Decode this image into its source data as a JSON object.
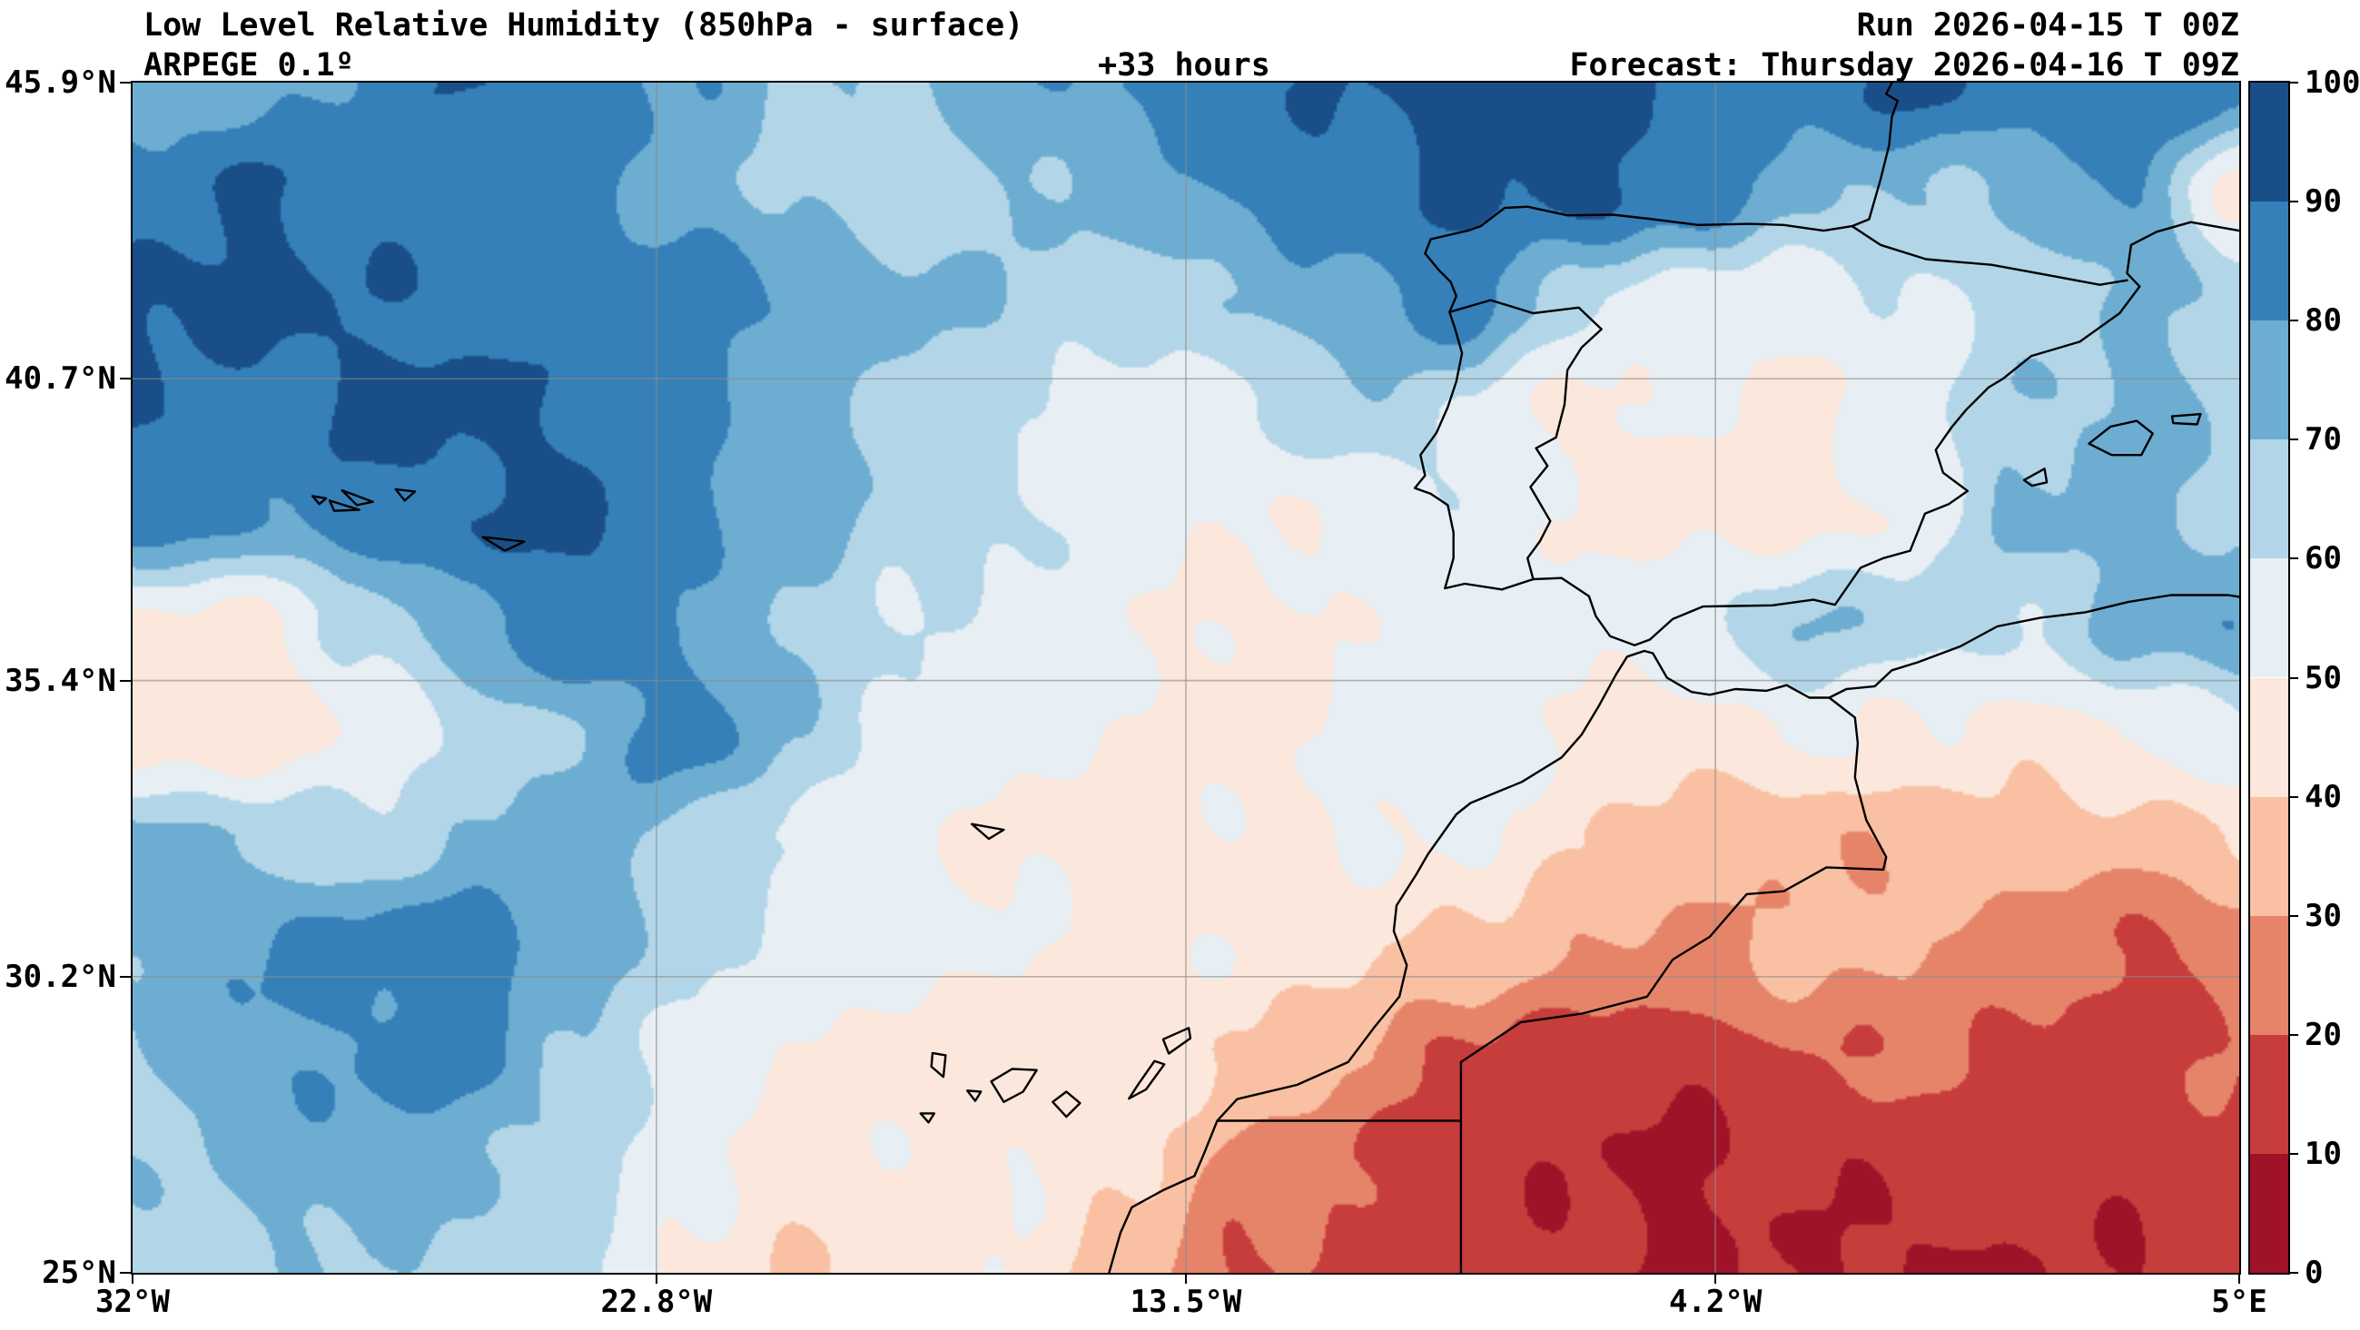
{
  "header": {
    "title": "Low Level Relative Humidity (850hPa - surface)",
    "model": "ARPEGE 0.1º",
    "lead_time": "+33 hours",
    "run": "Run 2026-04-15 T 00Z",
    "forecast": "Forecast: Thursday 2026-04-16 T 09Z"
  },
  "axes": {
    "x": {
      "ticks": [
        {
          "value": -32,
          "label": "32°W"
        },
        {
          "value": -22.8,
          "label": "22.8°W"
        },
        {
          "value": -13.5,
          "label": "13.5°W"
        },
        {
          "value": -4.2,
          "label": "4.2°W"
        },
        {
          "value": 5,
          "label": "5°E"
        }
      ]
    },
    "y": {
      "ticks": [
        {
          "value": 45.9,
          "label": "45.9°N"
        },
        {
          "value": 40.7,
          "label": "40.7°N"
        },
        {
          "value": 35.4,
          "label": "35.4°N"
        },
        {
          "value": 30.2,
          "label": "30.2°N"
        },
        {
          "value": 25,
          "label": "25°N"
        }
      ]
    }
  },
  "colorbar": {
    "min": 0,
    "max": 100,
    "ticks": [
      0,
      10,
      20,
      30,
      40,
      50,
      60,
      70,
      80,
      90,
      100
    ],
    "colors": [
      "#9f1228",
      "#c63d3c",
      "#e6846a",
      "#f9c0a3",
      "#fbe7db",
      "#e7eff4",
      "#b2d6e8",
      "#6dadd1",
      "#3580b9",
      "#1a4e88"
    ]
  },
  "chart_data": {
    "type": "heatmap",
    "title": "Low Level Relative Humidity (850hPa - surface)",
    "variable": "relative humidity (%)",
    "levels": [
      0,
      10,
      20,
      30,
      40,
      50,
      60,
      70,
      80,
      90,
      100
    ],
    "legend_position": "right-colorbar",
    "grid_on": true,
    "extent": {
      "lon_min": -32,
      "lon_max": 5,
      "lat_min": 25,
      "lat_max": 45.9
    },
    "gridlines": {
      "x": [
        -22.8,
        -13.5,
        -4.2
      ],
      "y": [
        40.7,
        35.4,
        30.2
      ]
    },
    "grid": {
      "lats": [
        45.9,
        44.0,
        42.1,
        40.2,
        38.3,
        36.4,
        34.5,
        32.6,
        30.7,
        28.8,
        26.9,
        25.0
      ],
      "lons": [
        -32,
        -30.1,
        -28.1,
        -26.2,
        -24.2,
        -22.3,
        -20.3,
        -18.4,
        -16.4,
        -14.5,
        -12.5,
        -10.5,
        -8.6,
        -6.6,
        -4.7,
        -2.8,
        -0.8,
        1.2,
        3.1,
        5
      ],
      "values": [
        [
          75,
          75,
          80,
          90,
          90,
          80,
          70,
          70,
          75,
          80,
          85,
          90,
          95,
          95,
          90,
          85,
          90,
          85,
          90,
          85
        ],
        [
          85,
          90,
          85,
          80,
          85,
          75,
          70,
          65,
          70,
          75,
          80,
          85,
          90,
          95,
          90,
          75,
          70,
          70,
          80,
          45
        ],
        [
          95,
          95,
          90,
          85,
          80,
          85,
          80,
          75,
          70,
          65,
          70,
          75,
          85,
          60,
          55,
          55,
          60,
          65,
          70,
          65
        ],
        [
          90,
          85,
          95,
          95,
          90,
          80,
          70,
          65,
          60,
          55,
          60,
          70,
          60,
          45,
          50,
          45,
          55,
          70,
          75,
          70
        ],
        [
          85,
          78,
          85,
          90,
          95,
          85,
          75,
          65,
          60,
          55,
          50,
          55,
          60,
          50,
          45,
          45,
          50,
          70,
          75,
          70
        ],
        [
          50,
          45,
          60,
          75,
          90,
          80,
          70,
          60,
          55,
          50,
          45,
          50,
          55,
          55,
          60,
          70,
          65,
          60,
          70,
          80
        ],
        [
          45,
          45,
          50,
          60,
          70,
          85,
          70,
          60,
          55,
          50,
          45,
          50,
          55,
          50,
          45,
          55,
          50,
          45,
          50,
          55
        ],
        [
          75,
          70,
          65,
          70,
          75,
          65,
          55,
          50,
          50,
          45,
          50,
          50,
          50,
          40,
          35,
          30,
          35,
          40,
          35,
          40
        ],
        [
          70,
          80,
          85,
          90,
          75,
          65,
          55,
          50,
          50,
          45,
          50,
          45,
          40,
          30,
          25,
          30,
          30,
          25,
          20,
          25
        ],
        [
          65,
          75,
          80,
          85,
          70,
          60,
          50,
          45,
          42,
          45,
          40,
          30,
          20,
          18,
          15,
          20,
          20,
          15,
          15,
          20
        ],
        [
          70,
          70,
          75,
          70,
          65,
          55,
          45,
          50,
          50,
          40,
          25,
          18,
          15,
          12,
          10,
          15,
          12,
          15,
          12,
          15
        ],
        [
          65,
          70,
          70,
          65,
          60,
          45,
          40,
          45,
          50,
          35,
          20,
          15,
          12,
          10,
          8,
          12,
          10,
          12,
          10,
          12
        ]
      ]
    }
  },
  "map": {
    "coastlines": {
      "europe_coast": [
        [
          5,
          43.3
        ],
        [
          4.15,
          43.45
        ],
        [
          3.55,
          43.28
        ],
        [
          3.1,
          43.05
        ],
        [
          3.03,
          42.55
        ],
        [
          3.25,
          42.32
        ],
        [
          2.9,
          41.85
        ],
        [
          2.2,
          41.35
        ],
        [
          1.35,
          41.1
        ],
        [
          0.85,
          40.7
        ],
        [
          0.6,
          40.55
        ],
        [
          0.2,
          40.15
        ],
        [
          -0.05,
          39.85
        ],
        [
          -0.33,
          39.45
        ],
        [
          -0.2,
          39.05
        ],
        [
          0.23,
          38.73
        ],
        [
          -0.1,
          38.5
        ],
        [
          -0.52,
          38.33
        ],
        [
          -0.65,
          38.0
        ],
        [
          -0.78,
          37.68
        ],
        [
          -1.25,
          37.55
        ],
        [
          -1.65,
          37.38
        ],
        [
          -2.1,
          36.73
        ],
        [
          -2.48,
          36.82
        ],
        [
          -3.2,
          36.72
        ],
        [
          -4.42,
          36.7
        ],
        [
          -4.95,
          36.48
        ],
        [
          -5.35,
          36.12
        ],
        [
          -5.62,
          36.02
        ],
        [
          -6.05,
          36.18
        ],
        [
          -6.3,
          36.53
        ],
        [
          -6.42,
          36.88
        ],
        [
          -6.9,
          37.2
        ],
        [
          -7.4,
          37.18
        ],
        [
          -7.95,
          37.0
        ],
        [
          -8.6,
          37.1
        ],
        [
          -8.95,
          37.02
        ],
        [
          -8.8,
          37.55
        ],
        [
          -8.8,
          38.0
        ],
        [
          -8.9,
          38.48
        ],
        [
          -9.2,
          38.68
        ],
        [
          -9.48,
          38.78
        ],
        [
          -9.3,
          39.0
        ],
        [
          -9.38,
          39.36
        ],
        [
          -9.1,
          39.75
        ],
        [
          -8.9,
          40.2
        ],
        [
          -8.75,
          40.65
        ],
        [
          -8.65,
          41.15
        ],
        [
          -8.78,
          41.6
        ],
        [
          -8.87,
          41.87
        ],
        [
          -8.75,
          42.15
        ],
        [
          -8.85,
          42.4
        ],
        [
          -9.05,
          42.6
        ],
        [
          -9.3,
          42.9
        ],
        [
          -9.2,
          43.15
        ],
        [
          -8.55,
          43.3
        ],
        [
          -8.32,
          43.38
        ],
        [
          -7.9,
          43.7
        ],
        [
          -7.5,
          43.72
        ],
        [
          -6.8,
          43.57
        ],
        [
          -6.0,
          43.58
        ],
        [
          -5.3,
          43.5
        ],
        [
          -4.5,
          43.4
        ],
        [
          -3.6,
          43.42
        ],
        [
          -3.0,
          43.4
        ],
        [
          -2.3,
          43.3
        ],
        [
          -1.8,
          43.38
        ],
        [
          -1.5,
          43.5
        ],
        [
          -1.3,
          44.2
        ],
        [
          -1.15,
          44.8
        ],
        [
          -1.1,
          45.3
        ],
        [
          -1.0,
          45.58
        ],
        [
          -1.2,
          45.7
        ],
        [
          -1.1,
          45.9
        ]
      ],
      "africa_coast": [
        [
          -14.85,
          25.0
        ],
        [
          -14.65,
          25.7
        ],
        [
          -14.45,
          26.15
        ],
        [
          -13.9,
          26.45
        ],
        [
          -13.35,
          26.7
        ],
        [
          -13.18,
          27.1
        ],
        [
          -12.95,
          27.67
        ],
        [
          -12.6,
          28.05
        ],
        [
          -11.55,
          28.3
        ],
        [
          -10.65,
          28.7
        ],
        [
          -10.2,
          29.3
        ],
        [
          -9.75,
          29.85
        ],
        [
          -9.62,
          30.4
        ],
        [
          -9.85,
          31.0
        ],
        [
          -9.8,
          31.45
        ],
        [
          -9.45,
          32.0
        ],
        [
          -9.25,
          32.35
        ],
        [
          -8.75,
          33.05
        ],
        [
          -8.5,
          33.25
        ],
        [
          -7.6,
          33.62
        ],
        [
          -6.9,
          34.05
        ],
        [
          -6.55,
          34.45
        ],
        [
          -6.25,
          34.95
        ],
        [
          -5.95,
          35.5
        ],
        [
          -5.75,
          35.82
        ],
        [
          -5.45,
          35.92
        ],
        [
          -5.3,
          35.88
        ],
        [
          -5.05,
          35.45
        ],
        [
          -4.62,
          35.2
        ],
        [
          -4.3,
          35.15
        ],
        [
          -3.85,
          35.25
        ],
        [
          -3.3,
          35.22
        ],
        [
          -2.95,
          35.32
        ],
        [
          -2.55,
          35.1
        ],
        [
          -2.2,
          35.1
        ],
        [
          -1.9,
          35.25
        ],
        [
          -1.4,
          35.3
        ],
        [
          -1.1,
          35.58
        ],
        [
          -0.65,
          35.72
        ],
        [
          -0.3,
          35.85
        ],
        [
          0.1,
          36.0
        ],
        [
          0.75,
          36.35
        ],
        [
          1.5,
          36.5
        ],
        [
          2.3,
          36.6
        ],
        [
          3.05,
          36.78
        ],
        [
          3.8,
          36.9
        ],
        [
          4.8,
          36.9
        ],
        [
          5.0,
          36.87
        ]
      ],
      "pt_es_border": [
        [
          -8.87,
          41.87
        ],
        [
          -8.15,
          42.08
        ],
        [
          -7.4,
          41.85
        ],
        [
          -6.6,
          41.95
        ],
        [
          -6.2,
          41.57
        ],
        [
          -6.55,
          41.25
        ],
        [
          -6.8,
          40.85
        ],
        [
          -6.85,
          40.25
        ],
        [
          -7.0,
          39.67
        ],
        [
          -7.35,
          39.48
        ],
        [
          -7.15,
          39.17
        ],
        [
          -7.45,
          38.8
        ],
        [
          -7.1,
          38.2
        ],
        [
          -7.28,
          37.85
        ],
        [
          -7.5,
          37.55
        ],
        [
          -7.4,
          37.18
        ]
      ],
      "fr_es_border": [
        [
          -1.8,
          43.38
        ],
        [
          -1.3,
          43.05
        ],
        [
          -0.5,
          42.8
        ],
        [
          0.65,
          42.7
        ],
        [
          1.75,
          42.5
        ],
        [
          2.55,
          42.35
        ],
        [
          3.03,
          42.43
        ]
      ],
      "ma_dz_border": [
        [
          -2.2,
          35.1
        ],
        [
          -1.75,
          34.75
        ],
        [
          -1.7,
          34.3
        ],
        [
          -1.75,
          33.7
        ],
        [
          -1.55,
          32.95
        ],
        [
          -1.2,
          32.3
        ],
        [
          -1.25,
          32.08
        ],
        [
          -2.25,
          32.12
        ],
        [
          -3.0,
          31.7
        ],
        [
          -3.65,
          31.65
        ],
        [
          -4.3,
          30.9
        ],
        [
          -4.95,
          30.5
        ],
        [
          -5.4,
          29.85
        ],
        [
          -6.55,
          29.55
        ],
        [
          -7.62,
          29.4
        ],
        [
          -8.67,
          28.7
        ],
        [
          -8.67,
          27.67
        ]
      ],
      "ws_border": [
        [
          -12.95,
          27.67
        ],
        [
          -8.67,
          27.67
        ],
        [
          -8.67,
          25.0
        ]
      ],
      "islands": [
        [
          [
            -13.9,
            29.1
          ],
          [
            -13.45,
            29.3
          ],
          [
            -13.42,
            29.12
          ],
          [
            -13.8,
            28.85
          ]
        ],
        [
          [
            -14.5,
            28.06
          ],
          [
            -14.2,
            28.22
          ],
          [
            -13.88,
            28.66
          ],
          [
            -14.05,
            28.72
          ],
          [
            -14.33,
            28.32
          ]
        ],
        [
          [
            -15.84,
            28.0
          ],
          [
            -15.6,
            28.18
          ],
          [
            -15.36,
            27.98
          ],
          [
            -15.6,
            27.74
          ]
        ],
        [
          [
            -16.92,
            28.36
          ],
          [
            -16.55,
            28.58
          ],
          [
            -16.12,
            28.56
          ],
          [
            -16.36,
            28.18
          ],
          [
            -16.7,
            28.0
          ]
        ],
        [
          [
            -17.95,
            28.86
          ],
          [
            -17.72,
            28.82
          ],
          [
            -17.76,
            28.44
          ],
          [
            -17.97,
            28.62
          ]
        ],
        [
          [
            -17.34,
            28.2
          ],
          [
            -17.1,
            28.18
          ],
          [
            -17.2,
            28.02
          ]
        ],
        [
          [
            -18.16,
            27.8
          ],
          [
            -17.92,
            27.8
          ],
          [
            -18.02,
            27.64
          ]
        ],
        [
          [
            -17.26,
            32.88
          ],
          [
            -16.7,
            32.78
          ],
          [
            -16.96,
            32.62
          ]
        ],
        [
          [
            -25.85,
            37.92
          ],
          [
            -25.12,
            37.84
          ],
          [
            -25.46,
            37.68
          ]
        ],
        [
          [
            -27.38,
            38.76
          ],
          [
            -27.04,
            38.72
          ],
          [
            -27.22,
            38.56
          ]
        ],
        [
          [
            -28.32,
            38.74
          ],
          [
            -27.78,
            38.54
          ],
          [
            -28.06,
            38.48
          ]
        ],
        [
          [
            -28.54,
            38.56
          ],
          [
            -28.02,
            38.4
          ],
          [
            -28.46,
            38.38
          ]
        ],
        [
          [
            -28.84,
            38.64
          ],
          [
            -28.6,
            38.6
          ],
          [
            -28.72,
            38.5
          ]
        ],
        [
          [
            2.36,
            39.56
          ],
          [
            2.74,
            39.86
          ],
          [
            3.2,
            39.96
          ],
          [
            3.48,
            39.74
          ],
          [
            3.28,
            39.36
          ],
          [
            2.76,
            39.36
          ]
        ],
        [
          [
            3.82,
            40.04
          ],
          [
            4.32,
            40.08
          ],
          [
            4.26,
            39.9
          ],
          [
            3.84,
            39.92
          ]
        ],
        [
          [
            1.22,
            38.92
          ],
          [
            1.58,
            39.12
          ],
          [
            1.62,
            38.88
          ],
          [
            1.36,
            38.82
          ]
        ]
      ]
    }
  }
}
